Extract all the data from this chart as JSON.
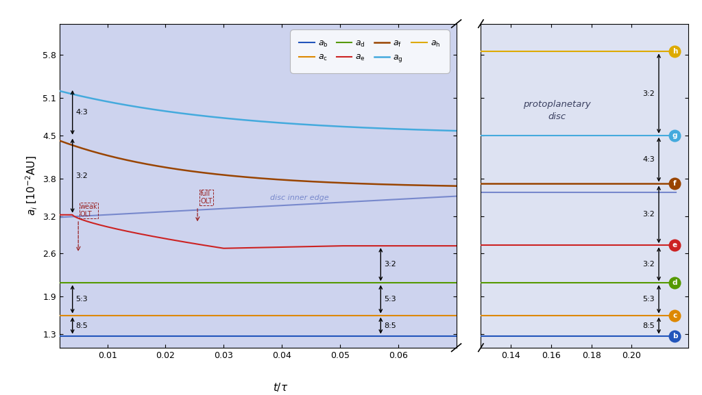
{
  "panel1_bg": "#cdd3ee",
  "panel2_bg": "#dde2f2",
  "left_xlim": [
    0.0018,
    0.07
  ],
  "right_xlim": [
    0.125,
    0.228
  ],
  "ylim": [
    1.08,
    6.3
  ],
  "yticks": [
    1.3,
    1.9,
    2.6,
    3.2,
    3.8,
    4.5,
    5.1,
    5.8
  ],
  "left_xticks": [
    0.01,
    0.02,
    0.03,
    0.04,
    0.05,
    0.06
  ],
  "right_xticks": [
    0.14,
    0.16,
    0.18,
    0.2
  ],
  "colors": {
    "b": "#2255bb",
    "c": "#dd8800",
    "d": "#559900",
    "e": "#cc2222",
    "f": "#994400",
    "g": "#44aadd",
    "h": "#ddaa00"
  },
  "circle_colors": {
    "b": "#2255bb",
    "c": "#dd8800",
    "d": "#559900",
    "e": "#cc2222",
    "f": "#994400",
    "g": "#44aadd",
    "h": "#ddaa00"
  },
  "disc_color": "#7788cc",
  "ann_color": "#992222",
  "xlabel": "$t/\\tau$",
  "ylabel": "$a_i\\ [10^{-2}\\mathrm{AU}]$"
}
